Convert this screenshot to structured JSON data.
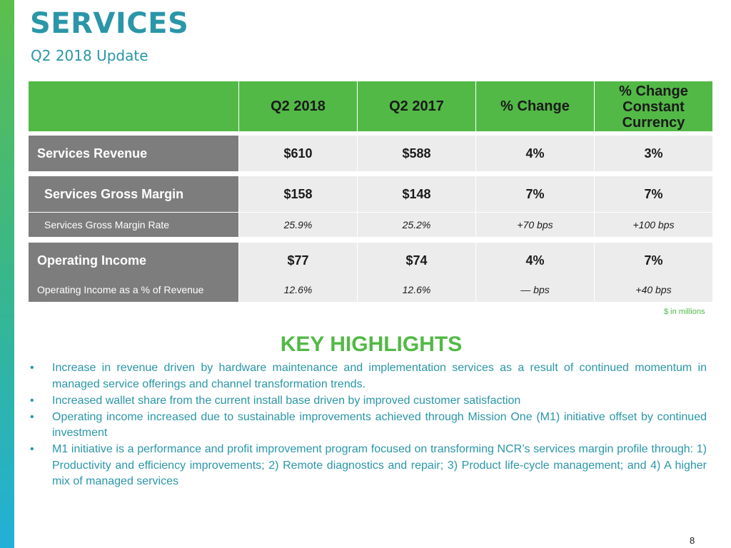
{
  "header": {
    "title": "SERVICES",
    "subtitle": "Q2 2018 Update"
  },
  "table": {
    "columns": [
      "Q2 2018",
      "Q2 2017",
      "% Change"
    ],
    "cc_header": [
      "% Change",
      "Constant",
      "Currency"
    ],
    "rows": [
      {
        "label": "Services Revenue",
        "q2_2018": "$610",
        "q2_2017": "$588",
        "pct_change": "4%",
        "cc_change": "3%"
      },
      {
        "label": "Services Gross Margin",
        "q2_2018": "$158",
        "q2_2017": "$148",
        "pct_change": "7%",
        "cc_change": "7%"
      },
      {
        "label": "Services Gross Margin Rate",
        "q2_2018": "25.9%",
        "q2_2017": "25.2%",
        "pct_change": "+70 bps",
        "cc_change": "+100 bps"
      },
      {
        "label": "Operating Income",
        "q2_2018": "$77",
        "q2_2017": "$74",
        "pct_change": "4%",
        "cc_change": "7%"
      },
      {
        "label": "Operating Income as a % of Revenue",
        "q2_2018": "12.6%",
        "q2_2017": "12.6%",
        "pct_change": "— bps",
        "cc_change": "+40 bps"
      }
    ],
    "footnote": "$ in millions"
  },
  "highlights": {
    "heading": "KEY HIGHLIGHTS",
    "bullets": [
      "Increase in revenue driven by hardware maintenance and implementation services as a result of continued momentum in managed service offerings and channel transformation trends.",
      "Increased wallet share from the current install base driven by improved customer satisfaction",
      "Operating income increased due to sustainable improvements achieved through Mission One (M1) initiative offset by continued investment",
      "M1 initiative is a performance and profit improvement program focused on transforming NCR’s services margin profile through: 1) Productivity and efficiency improvements; 2) Remote diagnostics and repair; 3) Product life-cycle management; and 4) A higher mix of managed services"
    ]
  },
  "page_number": "8",
  "colors": {
    "title": "#2a96a8",
    "accent_green": "#52b946",
    "label_gray": "#7d7d7d",
    "value_bg": "#ececec"
  }
}
